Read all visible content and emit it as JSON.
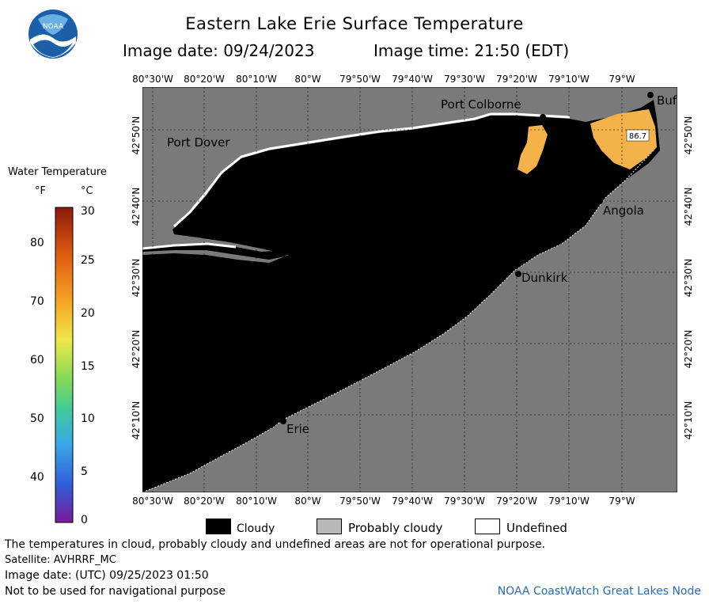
{
  "header": {
    "title": "Eastern Lake Erie Surface Temperature",
    "image_date": "Image date: 09/24/2023",
    "image_time": "Image time: 21:50 (EDT)"
  },
  "logo": {
    "text": "NOAA",
    "icon": "noaa-logo-icon",
    "colors": [
      "#1a5fa8",
      "#ffffff",
      "#6ab0e0"
    ]
  },
  "map": {
    "lon_labels": [
      "80°30'W",
      "80°20'W",
      "80°10'W",
      "80°W",
      "79°50'W",
      "79°40'W",
      "79°30'W",
      "79°20'W",
      "79°10'W",
      "79°W"
    ],
    "lat_labels": [
      "42°50'N",
      "42°40'N",
      "42°30'N",
      "42°20'N",
      "42°10'N"
    ],
    "cities": [
      {
        "name": "Port Colborne"
      },
      {
        "name": "Port Dover"
      },
      {
        "name": "Angola"
      },
      {
        "name": "Dunkirk"
      },
      {
        "name": "Erie"
      },
      {
        "name": "Buf"
      }
    ],
    "max_marker": "86.7",
    "colors": {
      "land": "#7a7a7a",
      "cloud": "#000000",
      "undefined": "#ffffff",
      "warm_water": "#f3b24a"
    }
  },
  "colorbar": {
    "title": "Water Temperature",
    "unit_f": "°F",
    "unit_c": "°C",
    "f_ticks": [
      "80",
      "70",
      "60",
      "50",
      "40"
    ],
    "c_ticks": [
      "30",
      "25",
      "20",
      "15",
      "10",
      "5",
      "0"
    ],
    "range_c": [
      0,
      30
    ],
    "range_f": [
      32,
      86
    ]
  },
  "legend": [
    {
      "label": "Cloudy",
      "color": "#000000"
    },
    {
      "label": "Probably cloudy",
      "color": "#b8b8b8"
    },
    {
      "label": "Undefined",
      "color": "#ffffff"
    }
  ],
  "footer": {
    "note": "The temperatures in cloud, probably cloudy and undefined areas are not for operational purpose.",
    "satellite": "Satellite: AVHRRF_MC",
    "utc_date": "Image date: (UTC) 09/25/2023  01:50",
    "nav_warning": "Not to be used for navigational purpose",
    "credit": "NOAA CoastWatch Great Lakes Node"
  }
}
